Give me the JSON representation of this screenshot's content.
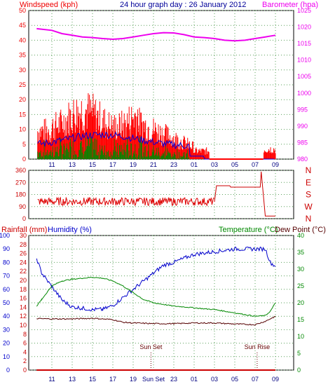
{
  "chart_data": [
    {
      "type": "line",
      "title": "24 hour graph day : 26 January 2012",
      "left_axis_label": "Windspeed (kph)",
      "right_axis_label": "Barometer (hpa)",
      "x_ticks": [
        "11",
        "13",
        "15",
        "17",
        "19",
        "21",
        "23",
        "01",
        "03",
        "05",
        "07",
        "09"
      ],
      "left_ticks": [
        "0",
        "5",
        "10",
        "15",
        "20",
        "25",
        "30",
        "35",
        "40",
        "45",
        "50"
      ],
      "right_ticks": [
        "980",
        "985",
        "990",
        "995",
        "1000",
        "1005",
        "1010",
        "1015",
        "1020",
        "1025"
      ],
      "ylim_left": [
        0,
        50
      ],
      "ylim_right": [
        980,
        1025
      ],
      "series": [
        {
          "axis": "right",
          "color": "#ee00ee",
          "x": [
            9.5,
            11,
            12,
            13,
            14,
            15,
            16,
            17,
            18,
            19,
            20,
            21,
            22,
            23,
            24,
            25,
            26,
            27,
            28,
            29,
            30,
            31,
            32,
            33
          ],
          "y": [
            1019.5,
            1019,
            1018,
            1017.5,
            1017,
            1016.8,
            1016.5,
            1016.3,
            1016.5,
            1017,
            1017.5,
            1018,
            1018.3,
            1018.2,
            1017.7,
            1017,
            1016.8,
            1016.5,
            1016,
            1015.8,
            1016,
            1016.5,
            1017,
            1017.5
          ]
        }
      ]
    },
    {
      "type": "line",
      "left_ticks": [
        "0",
        "90",
        "180",
        "270",
        "360"
      ],
      "right_ticks": [
        "N",
        "W",
        "S",
        "E",
        "N"
      ],
      "ylim": [
        0,
        360
      ],
      "series": [
        {
          "color": "#cc0000",
          "x": [
            9.5,
            27,
            27.2,
            28.5,
            28.6,
            31.5,
            31.6,
            32.0,
            32.1,
            33
          ],
          "y": [
            130,
            125,
            245,
            245,
            235,
            235,
            350,
            20,
            20,
            20
          ]
        }
      ]
    },
    {
      "type": "line",
      "label_rain": "Rainfall (mm)",
      "label_humidity": "Humidity (%)",
      "label_temp": "Temperature (°C)",
      "label_dew": "Dew Point (°C)",
      "x_ticks": [
        "11",
        "13",
        "15",
        "17",
        "19",
        "Sun Set",
        "23",
        "01",
        "03",
        "05",
        "07",
        "09"
      ],
      "humidity_ticks": [
        "0",
        "10",
        "20",
        "30",
        "40",
        "50",
        "60",
        "70",
        "80",
        "90",
        "100"
      ],
      "rain_ticks": [
        "0",
        "2",
        "4",
        "6",
        "8",
        "10",
        "12",
        "14",
        "16",
        "18",
        "20",
        "22",
        "24",
        "26",
        "28",
        "30"
      ],
      "temp_ticks": [
        "0",
        "5",
        "10",
        "15",
        "20",
        "25",
        "30",
        "35",
        "40"
      ],
      "ylim_humidity": [
        0,
        100
      ],
      "ylim_temp": [
        0,
        40
      ],
      "annotations": [
        "Sun Set",
        "Sun Rise"
      ],
      "sunset_hour": 20.75,
      "sunrise_hour": 31.2,
      "series": [
        {
          "name": "Humidity",
          "color": "#0000cc",
          "x": [
            9.5,
            10,
            11,
            12,
            13,
            14,
            15,
            16,
            17,
            18,
            19,
            20,
            21,
            22,
            23,
            24,
            25,
            26,
            27,
            28,
            29,
            30,
            31,
            32,
            32.5,
            33
          ],
          "y": [
            83,
            72,
            62,
            52,
            47,
            46,
            45,
            45,
            48,
            54,
            60,
            66,
            72,
            78,
            80,
            83,
            86,
            87,
            88,
            89,
            90,
            90,
            90,
            90,
            80,
            77
          ]
        },
        {
          "name": "Temperature",
          "color": "#008800",
          "x": [
            9.5,
            10,
            11,
            12,
            13,
            14,
            15,
            16,
            17,
            18,
            19,
            20,
            21,
            22,
            23,
            24,
            25,
            26,
            27,
            28,
            29,
            30,
            31,
            32,
            32.5,
            33
          ],
          "y": [
            19,
            21,
            25,
            26.5,
            27,
            27.3,
            27.6,
            27.3,
            26.5,
            25,
            23,
            21,
            20,
            19.5,
            19,
            18.8,
            18.5,
            18.2,
            18,
            17.5,
            17,
            16.5,
            16,
            16.2,
            17.5,
            20
          ]
        },
        {
          "name": "Dew Point",
          "color": "#550000",
          "x": [
            9.5,
            11,
            13,
            15,
            17,
            18,
            19,
            21,
            23,
            25,
            27,
            29,
            31,
            32,
            33
          ],
          "y": [
            15.3,
            15.2,
            15.2,
            15.4,
            15,
            14.2,
            14,
            13.8,
            13.8,
            14,
            14,
            13.7,
            13.5,
            14.5,
            16
          ]
        },
        {
          "name": "Rainfall",
          "color": "#cc0000",
          "x": [
            9.5,
            33
          ],
          "y": [
            0,
            0
          ]
        }
      ]
    }
  ]
}
